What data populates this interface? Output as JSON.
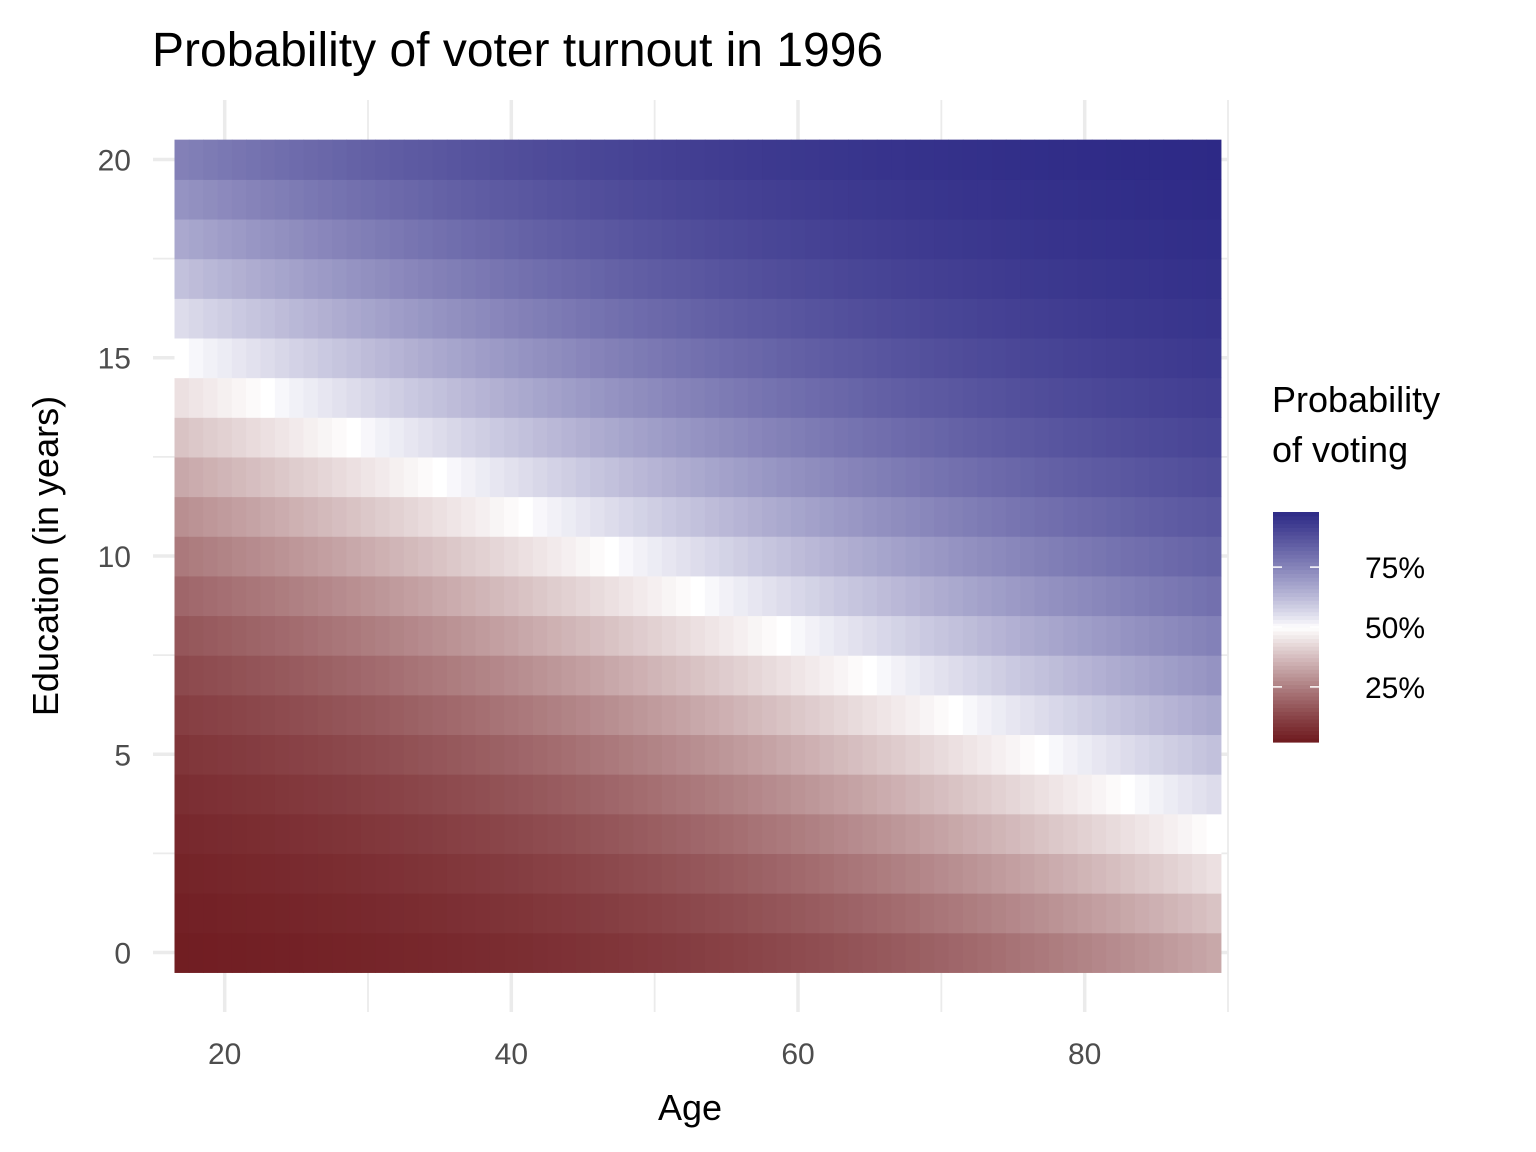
{
  "chart_data": {
    "type": "heatmap",
    "title": "Probability of voter turnout in 1996",
    "xlabel": "Age",
    "ylabel": "Education (in years)",
    "x_ticks": [
      20,
      40,
      60,
      80
    ],
    "y_ticks": [
      0,
      5,
      10,
      15,
      20
    ],
    "x_range": [
      17,
      89
    ],
    "y_range": [
      0,
      20
    ],
    "xlim": [
      15,
      90
    ],
    "ylim": [
      -1.5,
      21.5
    ],
    "grid": true,
    "legend": {
      "title_lines": [
        "Probability",
        "of voting"
      ],
      "position": "right",
      "breaks": [
        0.25,
        0.5,
        0.75
      ],
      "labels": [
        "25%",
        "50%",
        "75%"
      ],
      "limits": [
        0.02,
        0.98
      ]
    },
    "colors": {
      "low": "#6b1419",
      "mid": "#ffffff",
      "high": "#262282"
    },
    "model": {
      "description_points_at_50pct": [
        [
          23,
          14
        ],
        [
          29,
          13
        ],
        [
          35,
          12
        ],
        [
          41,
          11
        ],
        [
          47,
          10
        ],
        [
          53,
          9
        ],
        [
          59,
          8
        ],
        [
          65,
          7
        ],
        [
          71,
          6
        ],
        [
          77,
          5
        ],
        [
          83,
          4
        ],
        [
          89,
          3
        ]
      ],
      "sample_values": [
        {
          "age": 17,
          "educ": 0,
          "p": 0.03
        },
        {
          "age": 89,
          "educ": 0,
          "p": 0.3
        },
        {
          "age": 17,
          "educ": 20,
          "p": 0.8
        },
        {
          "age": 89,
          "educ": 20,
          "p": 0.98
        }
      ]
    }
  }
}
